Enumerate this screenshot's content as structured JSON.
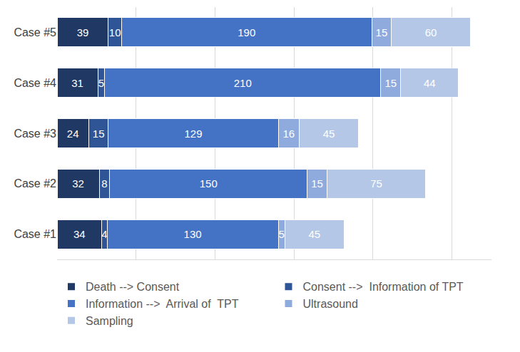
{
  "chart_data": {
    "type": "bar",
    "orientation": "horizontal",
    "stacked": true,
    "data_labels": true,
    "grid": true,
    "tick_labels": "y",
    "legend": "bottom",
    "categories": [
      "Case #1",
      "Case #2",
      "Case #3",
      "Case #4",
      "Case #5"
    ],
    "xlim": [
      0,
      330
    ],
    "xticks": [
      0,
      60,
      120,
      180,
      240,
      300
    ],
    "series": [
      {
        "name": "Death --> Consent",
        "color": "#203864",
        "values": [
          34,
          32,
          24,
          31,
          39
        ]
      },
      {
        "name": "Consent -->  Information of TPT",
        "color": "#2F5597",
        "values": [
          4,
          8,
          15,
          5,
          10
        ]
      },
      {
        "name": "Information -->  Arrival of  TPT",
        "color": "#4472C4",
        "values": [
          130,
          150,
          129,
          210,
          190
        ]
      },
      {
        "name": "Ultrasound",
        "color": "#8FAADC",
        "values": [
          5,
          15,
          16,
          15,
          15
        ]
      },
      {
        "name": "Sampling",
        "color": "#B4C7E7",
        "values": [
          45,
          75,
          45,
          44,
          60
        ]
      }
    ]
  }
}
